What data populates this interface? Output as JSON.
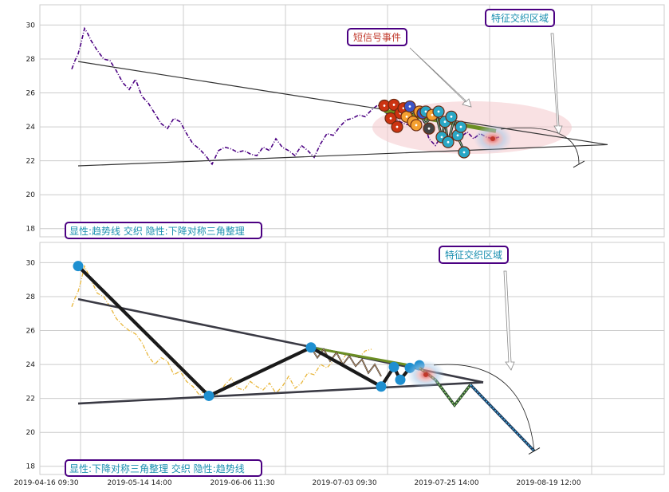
{
  "charts": [
    {
      "type": "line",
      "ylim": [
        17.8,
        31.1
      ],
      "yticks": [
        18,
        20,
        22,
        24,
        26,
        28,
        30
      ],
      "annotations": {
        "event_label": "短信号事件",
        "zone_label": "特征交织区域",
        "caption": "显性:趋势线 交织 隐性:下降对称三角整理"
      },
      "price_series": {
        "name": "price",
        "color": "#4b0082",
        "style": "dash-dot",
        "x": [
          0,
          1,
          2,
          3,
          4,
          5,
          6,
          8,
          10,
          12,
          14,
          16,
          18,
          20,
          22,
          24,
          26,
          28,
          30,
          32,
          34,
          36,
          38,
          40,
          42,
          44,
          46,
          48,
          50,
          52,
          54,
          56,
          58,
          60,
          62,
          64,
          66,
          68,
          70,
          72,
          74,
          76,
          78,
          80,
          82,
          84,
          86,
          88,
          90,
          92,
          94,
          96,
          98,
          100,
          102,
          104,
          106,
          108,
          110,
          112,
          114,
          116,
          118,
          120,
          122,
          124,
          126,
          128,
          130,
          132,
          134
        ],
        "y": [
          27.4,
          27.9,
          28.3,
          29.0,
          29.8,
          29.5,
          29.1,
          28.5,
          28.0,
          27.9,
          27.3,
          26.6,
          26.2,
          26.8,
          25.8,
          25.4,
          24.8,
          24.2,
          23.9,
          24.5,
          24.3,
          23.6,
          23.0,
          22.7,
          22.3,
          21.8,
          22.6,
          22.8,
          22.7,
          22.5,
          22.6,
          22.4,
          22.3,
          22.8,
          22.6,
          23.3,
          22.8,
          22.6,
          22.3,
          22.9,
          22.6,
          22.2,
          23.0,
          23.6,
          23.5,
          24.0,
          24.4,
          24.5,
          24.7,
          24.6,
          25.0,
          25.3,
          24.9,
          24.6,
          24.4,
          24.2,
          24.1,
          23.9,
          24.5,
          23.3,
          22.9,
          23.5,
          23.1,
          23.6,
          23.4,
          23.7,
          23.3,
          23.6,
          23.4,
          23.3,
          23.4
        ]
      },
      "trend_upper": {
        "x": [
          2,
          168
        ],
        "y": [
          27.85,
          22.95
        ]
      },
      "trend_lower": {
        "x": [
          2,
          168
        ],
        "y": [
          21.7,
          22.95
        ]
      },
      "green_band": {
        "x": [
          98,
          133
        ],
        "y": [
          24.95,
          23.75
        ]
      },
      "event_points": [
        {
          "x": 98,
          "y": 25.25,
          "c": "#cc3311"
        },
        {
          "x": 100,
          "y": 24.5,
          "c": "#cc3311"
        },
        {
          "x": 101,
          "y": 25.3,
          "c": "#cc3311"
        },
        {
          "x": 102,
          "y": 24.0,
          "c": "#cc3311"
        },
        {
          "x": 103,
          "y": 24.8,
          "c": "#cc3311"
        },
        {
          "x": 104,
          "y": 25.1,
          "c": "#cc3311"
        },
        {
          "x": 105,
          "y": 24.6,
          "c": "#f4a030"
        },
        {
          "x": 106,
          "y": 25.2,
          "c": "#3d55c6"
        },
        {
          "x": 107,
          "y": 24.3,
          "c": "#f4a030"
        },
        {
          "x": 108,
          "y": 24.1,
          "c": "#f4a030"
        },
        {
          "x": 109,
          "y": 24.9,
          "c": "#f4a030"
        },
        {
          "x": 110,
          "y": 24.8,
          "c": "#3d55c6"
        },
        {
          "x": 111,
          "y": 24.9,
          "c": "#2aa7c5"
        },
        {
          "x": 112,
          "y": 23.9,
          "c": "#444444"
        },
        {
          "x": 113,
          "y": 24.7,
          "c": "#f4a030"
        },
        {
          "x": 115,
          "y": 24.9,
          "c": "#2aa7c5"
        },
        {
          "x": 116,
          "y": 23.4,
          "c": "#2aa7c5"
        },
        {
          "x": 117,
          "y": 24.3,
          "c": "#2aa7c5"
        },
        {
          "x": 118,
          "y": 23.1,
          "c": "#2aa7c5"
        },
        {
          "x": 119,
          "y": 24.6,
          "c": "#2aa7c5"
        },
        {
          "x": 121,
          "y": 23.5,
          "c": "#2aa7c5"
        },
        {
          "x": 122,
          "y": 24.0,
          "c": "#2aa7c5"
        },
        {
          "x": 123,
          "y": 22.5,
          "c": "#2aa7c5"
        }
      ],
      "zigzag": {
        "x": [
          105,
          108,
          111,
          114,
          116,
          117,
          118,
          120,
          121,
          123
        ],
        "y": [
          24.6,
          25.0,
          24.2,
          24.9,
          23.4,
          24.3,
          23.1,
          24.5,
          23.4,
          22.6
        ]
      },
      "zone_center": {
        "x": 132,
        "y": 23.3
      },
      "arc_end": {
        "x": 159,
        "y": 21.8
      }
    },
    {
      "type": "line",
      "ylim": [
        17.8,
        31.1
      ],
      "yticks": [
        18,
        20,
        22,
        24,
        26,
        28,
        30
      ],
      "annotations": {
        "zone_label": "特征交织区域",
        "caption": "显性:下降对称三角整理 交织 隐性:趋势线"
      },
      "price_series": {
        "name": "price",
        "color": "#e8b63a",
        "style": "dash-dot",
        "x": [
          0,
          1,
          2,
          3,
          4,
          6,
          8,
          10,
          12,
          14,
          16,
          18,
          20,
          22,
          24,
          26,
          28,
          30,
          32,
          34,
          36,
          38,
          40,
          42,
          44,
          46,
          48,
          50,
          52,
          54,
          56,
          58,
          60,
          62,
          64,
          66,
          68,
          70,
          72,
          74,
          76,
          78,
          80,
          82,
          84,
          86,
          88,
          90,
          92,
          94
        ],
        "y": [
          27.4,
          27.9,
          28.3,
          29.0,
          29.8,
          29.0,
          28.2,
          28.0,
          27.4,
          26.7,
          26.3,
          26.0,
          25.8,
          25.3,
          24.5,
          24.0,
          24.4,
          24.2,
          23.4,
          23.6,
          23.0,
          22.7,
          22.2,
          22.5,
          22.0,
          22.3,
          22.8,
          23.2,
          22.6,
          22.5,
          23.0,
          22.7,
          22.5,
          22.9,
          22.3,
          22.7,
          23.3,
          22.6,
          22.9,
          23.5,
          23.4,
          24.0,
          23.8,
          24.2,
          24.0,
          24.6,
          24.5,
          24.4,
          24.8,
          24.9
        ]
      },
      "trend_upper": {
        "x": [
          2,
          129
        ],
        "y": [
          27.85,
          22.95
        ]
      },
      "trend_lower": {
        "x": [
          2,
          129
        ],
        "y": [
          21.7,
          22.95
        ]
      },
      "pattern_line": {
        "x": [
          2,
          43,
          75,
          97,
          101,
          103,
          106,
          109
        ],
        "y": [
          29.8,
          22.15,
          25.0,
          22.7,
          23.85,
          23.1,
          23.8,
          23.95
        ]
      },
      "green_band": {
        "x": [
          75,
          109
        ],
        "y": [
          25.0,
          23.85
        ]
      },
      "thin_zigzag": {
        "x": [
          75,
          77,
          79,
          81,
          83,
          85,
          87,
          89,
          91,
          93,
          95,
          97
        ],
        "y": [
          25.0,
          24.4,
          24.9,
          24.2,
          24.7,
          24.0,
          24.5,
          23.9,
          24.3,
          23.5,
          24.0,
          23.3
        ]
      },
      "forecast_green": {
        "x": [
          109,
          114,
          120,
          125
        ],
        "y": [
          23.8,
          23.1,
          21.6,
          22.8
        ]
      },
      "forecast_blue": {
        "x": [
          125,
          145
        ],
        "y": [
          22.8,
          18.9
        ]
      },
      "zone_center": {
        "x": 111,
        "y": 23.4
      },
      "arc_end": {
        "x": 145,
        "y": 18.9
      },
      "x_tick_labels": [
        "2019-04-16 09:30",
        "2019-05-14 14:00",
        "2019-06-06 11:30",
        "2019-07-03 09:30",
        "2019-07-25 14:00",
        "2019-08-19 12:00"
      ]
    }
  ],
  "colors": {
    "box_border": "#4b0082",
    "box_text_blue": "#1a8fb0",
    "box_text_red": "#c0392b",
    "grid": "#cccccc"
  }
}
